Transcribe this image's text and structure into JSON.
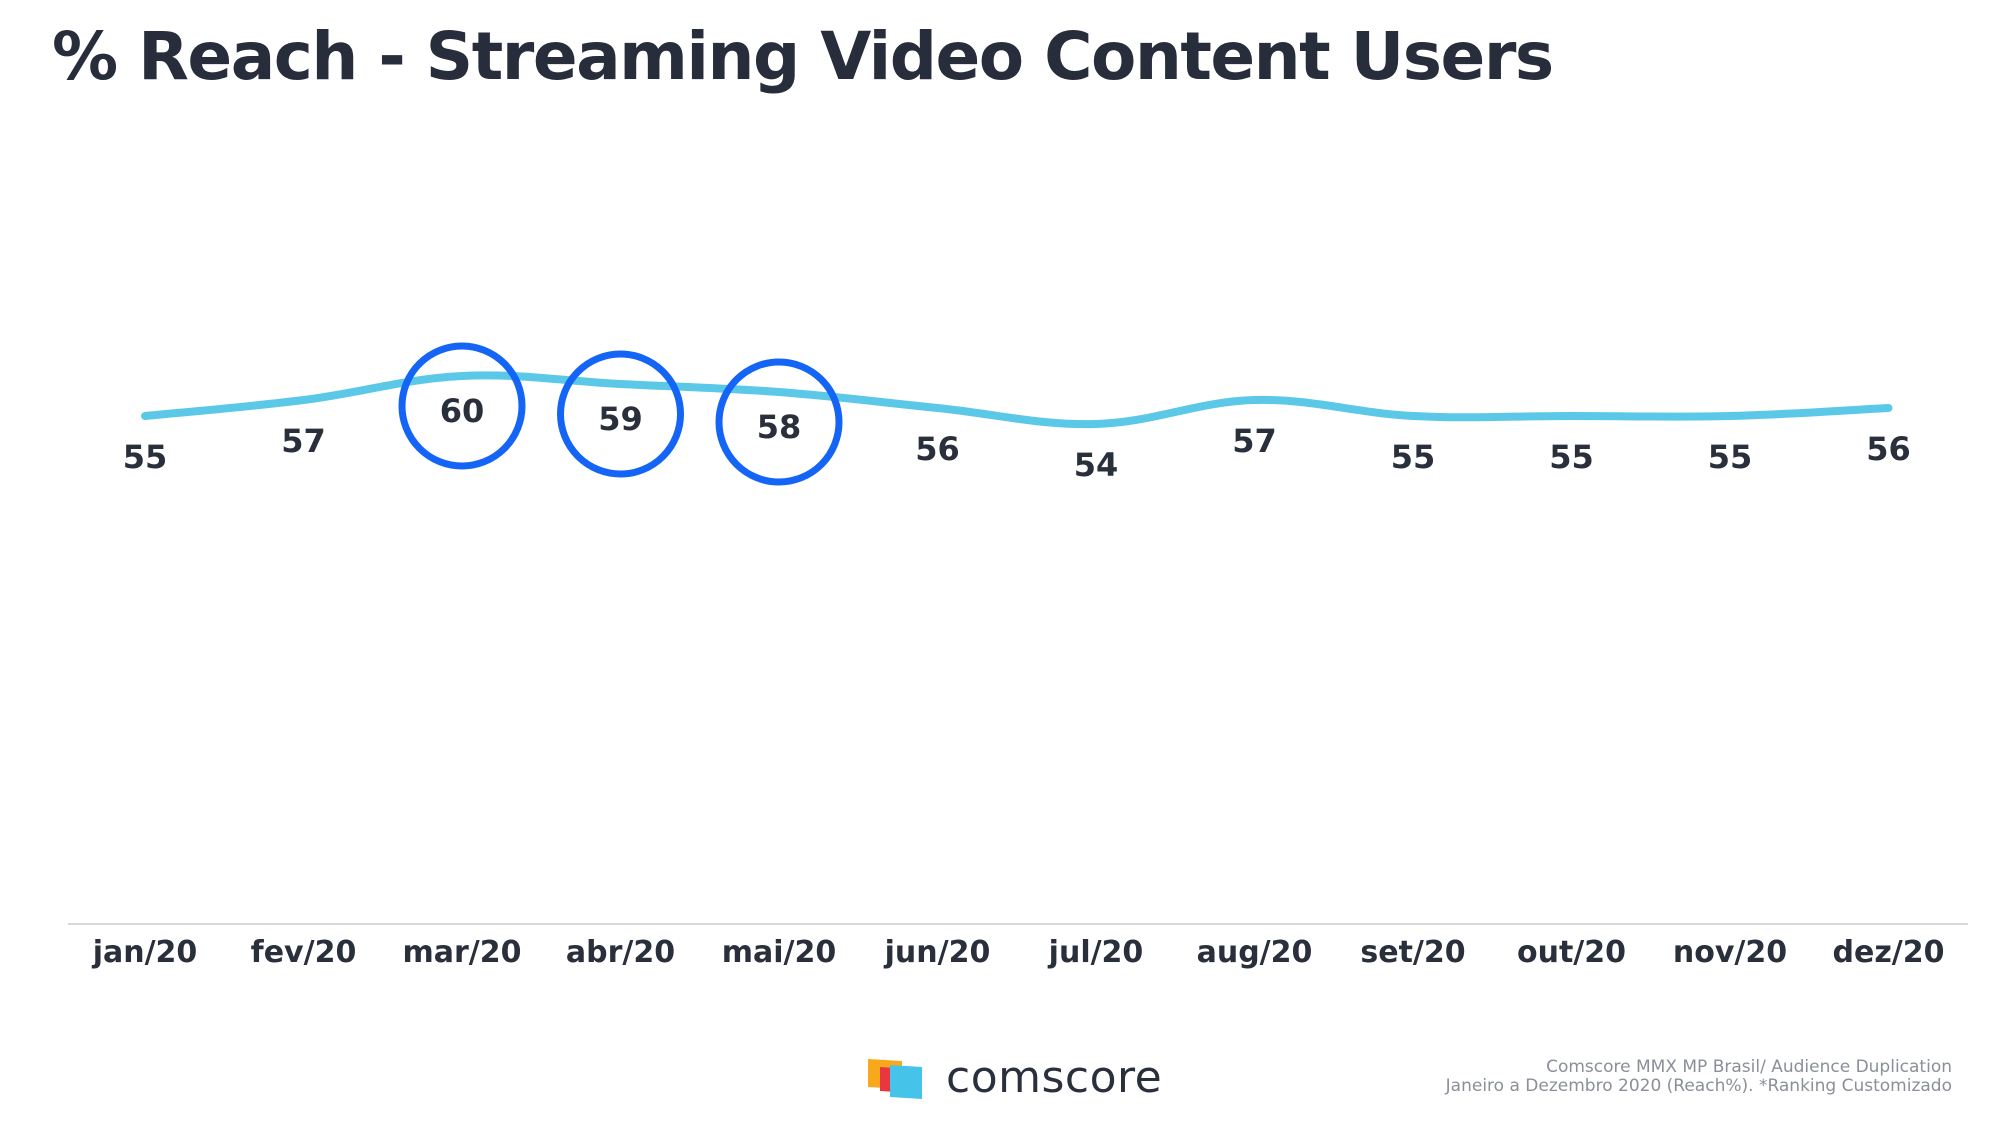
{
  "title": "% Reach - Streaming Video Content Users",
  "chart_data": {
    "type": "line",
    "title": "% Reach - Streaming Video Content Users",
    "xlabel": "",
    "ylabel": "",
    "categories": [
      "jan/20",
      "fev/20",
      "mar/20",
      "abr/20",
      "mai/20",
      "jun/20",
      "jul/20",
      "aug/20",
      "set/20",
      "out/20",
      "nov/20",
      "dez/20"
    ],
    "series": [
      {
        "values": [
          55,
          57,
          60,
          59,
          58,
          56,
          54,
          57,
          55,
          55,
          55,
          56
        ]
      }
    ],
    "data_labels": [
      "55",
      "57",
      "60",
      "59",
      "58",
      "56",
      "54",
      "57",
      "55",
      "55",
      "55",
      "56"
    ],
    "highlighted_points": [
      "mar/20",
      "abr/20",
      "mai/20"
    ],
    "line_color": "#5bc8e8",
    "highlight_color": "#1464f5",
    "grid": false,
    "legend": "none"
  },
  "logo": {
    "text": "comscore",
    "colors": [
      "#f7a81b",
      "#e8373f",
      "#45c3e8"
    ]
  },
  "source": {
    "line1": "Comscore MMX MP Brasil/ Audience Duplication",
    "line2": "Janeiro a Dezembro 2020 (Reach%). *Ranking Customizado"
  }
}
